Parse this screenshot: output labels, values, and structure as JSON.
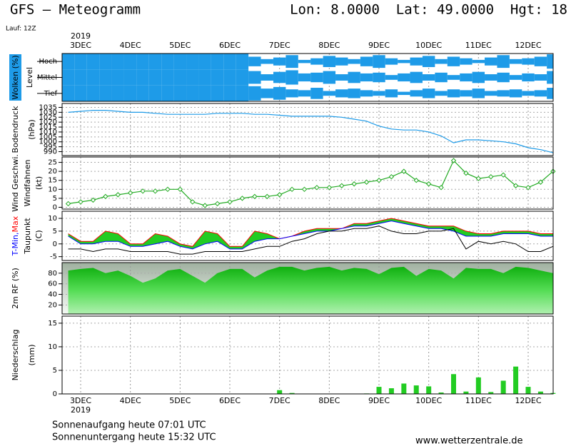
{
  "header": {
    "title": "GFS – Meteogramm",
    "location": "Lon: 8.0000  Lat: 49.0000  Hgt: 18",
    "run": "Lauf: 12Z"
  },
  "chart_data": [
    {
      "type": "heatmap",
      "y_label": "Wolken (%)",
      "y_label_color": "#ffffff",
      "y_label_bg": "#1e9be8",
      "level_label": "Level",
      "year": "2019",
      "categories": [
        null,
        "3DEC",
        null,
        null,
        null,
        "4DEC",
        null,
        null,
        null,
        "5DEC",
        null,
        null,
        null,
        "6DEC",
        null,
        null,
        null,
        "7DEC",
        null,
        null,
        null,
        "8DEC",
        null,
        null,
        null,
        "9DEC",
        null,
        null,
        null,
        "10DEC",
        null,
        null,
        null,
        "11DEC",
        null,
        null,
        null,
        "12DEC",
        null,
        null
      ],
      "series": [
        {
          "name": "Hoch",
          "color": "#1e9be8",
          "values": [
            100,
            100,
            100,
            100,
            100,
            100,
            100,
            100,
            100,
            100,
            100,
            100,
            100,
            100,
            100,
            60,
            30,
            50,
            80,
            20,
            40,
            70,
            50,
            30,
            60,
            80,
            40,
            20,
            50,
            70,
            30,
            60,
            40,
            20,
            50,
            80,
            30,
            40,
            60,
            90
          ]
        },
        {
          "name": "Mittel",
          "color": "#1e9be8",
          "values": [
            100,
            100,
            100,
            100,
            100,
            100,
            100,
            100,
            100,
            100,
            100,
            100,
            100,
            100,
            100,
            80,
            40,
            70,
            90,
            50,
            60,
            80,
            40,
            70,
            50,
            60,
            30,
            50,
            70,
            40,
            60,
            30,
            50,
            70,
            40,
            60,
            30,
            50,
            40,
            80
          ]
        },
        {
          "name": "Tief",
          "color": "#1e9be8",
          "values": [
            100,
            100,
            100,
            100,
            100,
            100,
            100,
            100,
            100,
            100,
            100,
            100,
            100,
            100,
            100,
            90,
            60,
            80,
            50,
            40,
            70,
            30,
            50,
            60,
            40,
            30,
            50,
            20,
            40,
            60,
            30,
            50,
            40,
            60,
            30,
            40,
            50,
            30,
            40,
            70
          ]
        }
      ]
    },
    {
      "type": "line",
      "y_label": "Bodendruck",
      "unit": "(hPa)",
      "color": "#1e9be8",
      "grid": true,
      "ylim": [
        986,
        1039
      ],
      "yticks": [
        990,
        995,
        1000,
        1005,
        1010,
        1015,
        1020,
        1025,
        1030,
        1035
      ],
      "values": [
        1030,
        1031,
        1032,
        1032,
        1031,
        1030,
        1030,
        1029,
        1028,
        1028,
        1028,
        1028,
        1029,
        1029,
        1029,
        1028,
        1028,
        1027,
        1026,
        1026,
        1026,
        1026,
        1025,
        1023,
        1021,
        1016,
        1013,
        1012,
        1012,
        1010,
        1006,
        999,
        1002,
        1002,
        1001,
        1000,
        998,
        994,
        992,
        989
      ]
    },
    {
      "type": "line",
      "y_label": "Wind Geschwi.",
      "y_label_color": "#22aa22",
      "y_label2": "Windfahnen",
      "unit": "(kt)",
      "color": "#22aa22",
      "marker": "diamond",
      "grid": true,
      "ylim": [
        -1,
        28
      ],
      "yticks": [
        0,
        5,
        10,
        15,
        20,
        25
      ],
      "values": [
        2,
        3,
        4,
        6,
        7,
        8,
        9,
        9,
        10,
        10,
        3,
        1,
        2,
        3,
        5,
        6,
        6,
        7,
        10,
        10,
        11,
        11,
        12,
        13,
        14,
        15,
        17,
        20,
        15,
        13,
        11,
        26,
        19,
        16,
        17,
        18,
        12,
        11,
        14,
        20
      ]
    },
    {
      "type": "line",
      "y_label": [
        {
          "text": "T-Min,",
          "color": "#0000ff"
        },
        {
          "text": "Max",
          "color": "#ff0000"
        }
      ],
      "y_label2": "Taupunkt",
      "unit": "(C)",
      "grid": true,
      "fill": "#22cc22",
      "ylim": [
        -6.5,
        12.8
      ],
      "yticks": [
        -5,
        0,
        5,
        10
      ],
      "series": [
        {
          "color": "#ff0000",
          "values": [
            4,
            1,
            1,
            5,
            4,
            0,
            0,
            4,
            3,
            0,
            -1,
            5,
            4,
            -1,
            -1,
            5,
            4,
            2,
            3,
            5,
            6,
            6,
            6,
            8,
            8,
            9,
            10,
            9,
            8,
            7,
            7,
            7,
            5,
            4,
            4,
            5,
            5,
            5,
            4,
            4
          ]
        },
        {
          "color": "#0000ff",
          "values": [
            3,
            0,
            0,
            1,
            1,
            -1,
            -1,
            0,
            1,
            -1,
            -2,
            0,
            1,
            -2,
            -2,
            1,
            2,
            2,
            3,
            4,
            5,
            5,
            6,
            7,
            7,
            8,
            9,
            8,
            7,
            6,
            6,
            5,
            3,
            3,
            3,
            4,
            4,
            4,
            3,
            3
          ]
        },
        {
          "color": "#000000",
          "values": [
            -2,
            -2,
            -3,
            -2,
            -2,
            -3,
            -3,
            -3,
            -3,
            -4,
            -4,
            -3,
            -3,
            -3,
            -3,
            -2,
            -1,
            -1,
            1,
            2,
            4,
            5,
            5,
            6,
            6,
            7,
            5,
            4,
            4,
            5,
            5,
            6,
            -2,
            1,
            0,
            1,
            0,
            -3,
            -3,
            -1
          ]
        }
      ]
    },
    {
      "type": "area",
      "y_label": "2m RF (%)",
      "y_label_color": "#22aa22",
      "color": "#22cc22",
      "grid": true,
      "ylim": [
        3,
        100
      ],
      "yticks": [
        20,
        40,
        60,
        80
      ],
      "values": [
        85,
        88,
        90,
        80,
        85,
        75,
        62,
        70,
        85,
        88,
        75,
        62,
        80,
        88,
        88,
        72,
        85,
        92,
        92,
        85,
        90,
        92,
        85,
        90,
        88,
        78,
        90,
        92,
        75,
        88,
        85,
        70,
        90,
        88,
        88,
        80,
        92,
        90,
        85,
        80
      ]
    },
    {
      "type": "bar",
      "y_label": "Niederschlag",
      "unit": "(mm)",
      "color": "#22cc22",
      "grid": true,
      "ylim": [
        0,
        16.5
      ],
      "yticks": [
        0,
        5,
        10,
        15
      ],
      "values": [
        0,
        0,
        0,
        0,
        0,
        0,
        0,
        0,
        0,
        0,
        0,
        0,
        0,
        0,
        0,
        0,
        0,
        0.8,
        0.2,
        0,
        0,
        0,
        0,
        0,
        0.1,
        1.5,
        1.2,
        2.2,
        1.8,
        1.6,
        0.3,
        4.2,
        0.5,
        3.5,
        0.4,
        2.8,
        5.8,
        1.5,
        0.5,
        0.2
      ]
    }
  ],
  "footer": {
    "sunrise": "Sonnenaufgang heute 07:01 UTC",
    "sunset": "Sonnenuntergang heute 15:32 UTC",
    "source": "www.wetterzentrale.de"
  }
}
